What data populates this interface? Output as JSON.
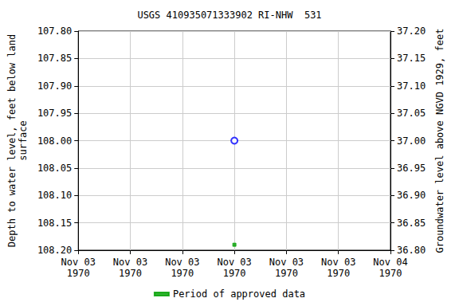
{
  "chart_data": {
    "type": "scatter",
    "title": "USGS 410935071333902 RI-NHW  531",
    "y_label": "Depth to water level, feet below land\nsurface",
    "y2_label": "Groundwater level above NGVD 1929, feet",
    "categories": [
      "Nov 03\n1970",
      "Nov 03\n1970",
      "Nov 03\n1970",
      "Nov 03\n1970",
      "Nov 03\n1970",
      "Nov 03\n1970",
      "Nov 04\n1970"
    ],
    "series": [
      {
        "color": "#0000ff",
        "marker": "circle",
        "values": [
          null,
          null,
          null,
          108.0,
          null,
          null,
          null
        ]
      },
      {
        "name": "Period of approved data",
        "color": "#00a000",
        "marker": "rect",
        "values": [
          null,
          null,
          null,
          108.19,
          null,
          null,
          null
        ]
      }
    ],
    "ylim": [
      107.8,
      108.2
    ],
    "yticks": [
      {
        "value": 107.8,
        "label": "107.80"
      },
      {
        "value": 107.85,
        "label": "107.85"
      },
      {
        "value": 107.9,
        "label": "107.90"
      },
      {
        "value": 107.95,
        "label": "107.95"
      },
      {
        "value": 108.0,
        "label": "108.00"
      },
      {
        "value": 108.05,
        "label": "108.05"
      },
      {
        "value": 108.1,
        "label": "108.10"
      },
      {
        "value": 108.15,
        "label": "108.15"
      },
      {
        "value": 108.2,
        "label": "108.20"
      }
    ],
    "y2lim": [
      36.8,
      37.2
    ],
    "y2ticks": [
      {
        "value": 36.8,
        "label": "36.80"
      },
      {
        "value": 36.85,
        "label": "36.85"
      },
      {
        "value": 36.9,
        "label": "36.90"
      },
      {
        "value": 36.95,
        "label": "36.95"
      },
      {
        "value": 37.0,
        "label": "37.00"
      },
      {
        "value": 37.05,
        "label": "37.05"
      },
      {
        "value": 37.1,
        "label": "37.10"
      },
      {
        "value": 37.15,
        "label": "37.15"
      },
      {
        "value": 37.2,
        "label": "37.20"
      }
    ],
    "grid": true,
    "legend": "bottom"
  }
}
